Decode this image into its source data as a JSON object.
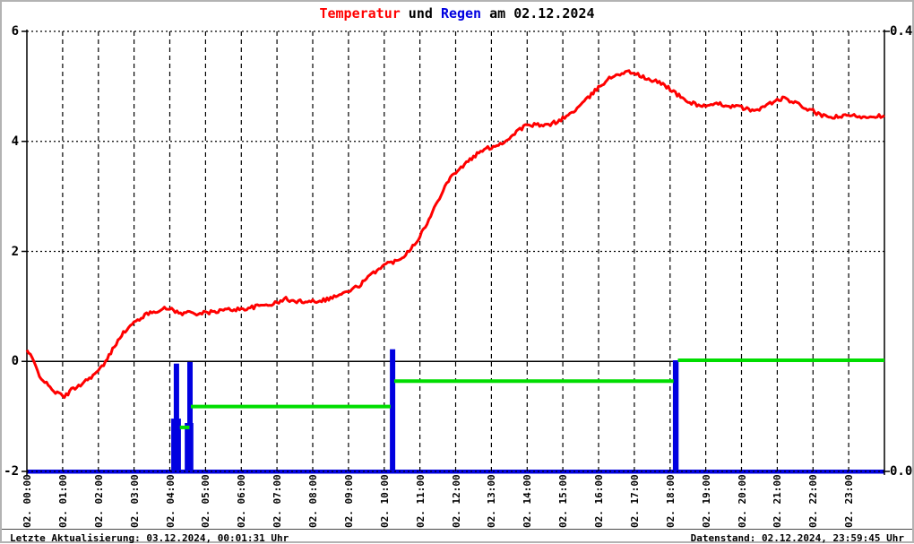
{
  "title": {
    "temperature_word": "Temperatur",
    "connector": " und ",
    "rain_word": "Regen",
    "date_part": " am 02.12.2024"
  },
  "status_bar": {
    "left": "Letzte Aktualisierung: 03.12.2024, 00:01:31 Uhr",
    "right": "Datenstand: 02.12.2024, 23:59:45 Uhr"
  },
  "colors": {
    "temperature": "#ff0000",
    "rain": "#0000e0",
    "rain_sum": "#00dd00",
    "grid": "#000000",
    "background": "#ffffff",
    "border": "#b3b3b3"
  },
  "chart_data": {
    "type": "line",
    "title": "Temperatur und Regen am 02.12.2024",
    "grid": "on",
    "legend": "none",
    "x_axis": {
      "range_hours": [
        0,
        24
      ],
      "gridline_style": "dashed-vertical-hourly",
      "labels": [
        "02. 00:00",
        "02. 01:00",
        "02. 02:00",
        "02. 03:00",
        "02. 04:00",
        "02. 05:00",
        "02. 06:00",
        "02. 07:00",
        "02. 08:00",
        "02. 09:00",
        "02. 10:00",
        "02. 11:00",
        "02. 12:00",
        "02. 13:00",
        "02. 14:00",
        "02. 15:00",
        "02. 16:00",
        "02. 17:00",
        "02. 18:00",
        "02. 19:00",
        "02. 20:00",
        "02. 21:00",
        "02. 22:00",
        "02. 23:00"
      ]
    },
    "y_axis_left": {
      "series": "Temperatur (°C)",
      "range": [
        -2,
        6
      ],
      "ticks": [
        {
          "value": 6,
          "label": "6"
        },
        {
          "value": 4,
          "label": "4"
        },
        {
          "value": 2,
          "label": "2"
        },
        {
          "value": 0,
          "label": "0"
        },
        {
          "value": -2,
          "label": "-2"
        }
      ]
    },
    "y_axis_right": {
      "series": "Regen (mm)",
      "range": [
        0,
        0.4
      ],
      "ticks": [
        {
          "value": 0.4,
          "label": "0.4"
        },
        {
          "value": 0.0,
          "label": "0.0"
        }
      ]
    },
    "series": [
      {
        "name": "Temperatur",
        "type": "line",
        "axis": "left",
        "color": "#ff0000",
        "points": [
          [
            0.0,
            0.2
          ],
          [
            0.15,
            0.05
          ],
          [
            0.35,
            -0.25
          ],
          [
            0.6,
            -0.45
          ],
          [
            0.85,
            -0.58
          ],
          [
            1.05,
            -0.64
          ],
          [
            1.25,
            -0.52
          ],
          [
            1.5,
            -0.42
          ],
          [
            1.75,
            -0.3
          ],
          [
            2.0,
            -0.18
          ],
          [
            2.2,
            -0.02
          ],
          [
            2.4,
            0.22
          ],
          [
            2.6,
            0.45
          ],
          [
            2.8,
            0.58
          ],
          [
            3.0,
            0.7
          ],
          [
            3.2,
            0.8
          ],
          [
            3.5,
            0.9
          ],
          [
            3.8,
            0.95
          ],
          [
            4.05,
            0.96
          ],
          [
            4.3,
            0.86
          ],
          [
            4.55,
            0.9
          ],
          [
            4.8,
            0.87
          ],
          [
            5.0,
            0.88
          ],
          [
            5.3,
            0.91
          ],
          [
            5.6,
            0.94
          ],
          [
            6.0,
            0.95
          ],
          [
            6.3,
            0.98
          ],
          [
            6.6,
            1.02
          ],
          [
            7.0,
            1.06
          ],
          [
            7.25,
            1.14
          ],
          [
            7.5,
            1.08
          ],
          [
            7.8,
            1.1
          ],
          [
            8.1,
            1.1
          ],
          [
            8.4,
            1.13
          ],
          [
            8.7,
            1.2
          ],
          [
            9.0,
            1.27
          ],
          [
            9.3,
            1.38
          ],
          [
            9.6,
            1.55
          ],
          [
            9.9,
            1.72
          ],
          [
            10.1,
            1.78
          ],
          [
            10.35,
            1.83
          ],
          [
            10.6,
            1.95
          ],
          [
            10.9,
            2.18
          ],
          [
            11.2,
            2.5
          ],
          [
            11.45,
            2.85
          ],
          [
            11.7,
            3.2
          ],
          [
            11.95,
            3.42
          ],
          [
            12.2,
            3.55
          ],
          [
            12.5,
            3.72
          ],
          [
            12.8,
            3.85
          ],
          [
            13.1,
            3.92
          ],
          [
            13.4,
            4.0
          ],
          [
            13.7,
            4.18
          ],
          [
            13.95,
            4.28
          ],
          [
            14.2,
            4.3
          ],
          [
            14.5,
            4.28
          ],
          [
            14.8,
            4.35
          ],
          [
            15.1,
            4.45
          ],
          [
            15.4,
            4.6
          ],
          [
            15.7,
            4.78
          ],
          [
            15.95,
            4.95
          ],
          [
            16.2,
            5.1
          ],
          [
            16.5,
            5.22
          ],
          [
            16.8,
            5.26
          ],
          [
            17.0,
            5.25
          ],
          [
            17.2,
            5.18
          ],
          [
            17.45,
            5.1
          ],
          [
            17.7,
            5.08
          ],
          [
            17.95,
            4.98
          ],
          [
            18.2,
            4.85
          ],
          [
            18.5,
            4.72
          ],
          [
            18.8,
            4.66
          ],
          [
            19.1,
            4.64
          ],
          [
            19.4,
            4.68
          ],
          [
            19.7,
            4.64
          ],
          [
            20.0,
            4.62
          ],
          [
            20.3,
            4.55
          ],
          [
            20.6,
            4.62
          ],
          [
            20.9,
            4.72
          ],
          [
            21.15,
            4.78
          ],
          [
            21.4,
            4.73
          ],
          [
            21.7,
            4.63
          ],
          [
            22.0,
            4.55
          ],
          [
            22.25,
            4.46
          ],
          [
            22.5,
            4.44
          ],
          [
            22.8,
            4.45
          ],
          [
            23.1,
            4.47
          ],
          [
            23.4,
            4.45
          ],
          [
            23.7,
            4.46
          ],
          [
            24.0,
            4.47
          ]
        ]
      },
      {
        "name": "Regen",
        "type": "bar",
        "axis": "right",
        "color": "#0000e0",
        "baseline_value": 0,
        "baseline_span_hours": [
          0,
          24
        ],
        "bars": [
          {
            "from_hour": 4.04,
            "width_hours": 0.27,
            "value": 0.048
          },
          {
            "from_hour": 4.11,
            "width_hours": 0.15,
            "value": 0.098
          },
          {
            "from_hour": 4.42,
            "width_hours": 0.24,
            "value": 0.044
          },
          {
            "from_hour": 4.49,
            "width_hours": 0.15,
            "value": 0.0995
          },
          {
            "from_hour": 10.16,
            "width_hours": 0.15,
            "value": 0.111
          },
          {
            "from_hour": 18.08,
            "width_hours": 0.16,
            "value": 0.101
          }
        ]
      },
      {
        "name": "Regensumme",
        "type": "step",
        "axis": "right",
        "color": "#00dd00",
        "segments": [
          {
            "from_hour": 4.28,
            "to_hour": 4.55,
            "value": 0.04
          },
          {
            "from_hour": 4.59,
            "to_hour": 10.18,
            "value": 0.059
          },
          {
            "from_hour": 10.28,
            "to_hour": 18.1,
            "value": 0.082
          },
          {
            "from_hour": 18.22,
            "to_hour": 24.0,
            "value": 0.101
          }
        ]
      }
    ]
  }
}
